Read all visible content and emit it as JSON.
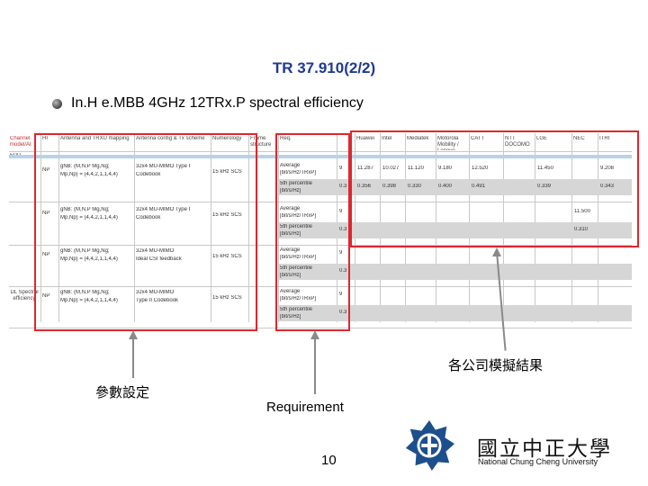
{
  "slide": {
    "title": "TR 37.910(2/2)",
    "bullet": "In.H e.MBB 4GHz 12TRx.P spectral efficiency",
    "page_number": "10"
  },
  "labels": {
    "results": "各公司模擬結果",
    "params": "參數設定",
    "requirement": "Requirement"
  },
  "logo": {
    "chinese": "國立中正大學",
    "english": "National Chung Cheng University"
  },
  "table": {
    "headers": [
      "Channel model/AI",
      "HI",
      "Antenna and TRXU mapping",
      "Antenna config & Tx scheme",
      "Numerology",
      "Frame structure",
      "Req.",
      "",
      "Huawei",
      "Intel",
      "Mediatek",
      "Motorola Mobility / Lenovo",
      "CATT",
      "NTT DOCOMO",
      "LGE",
      "NEC",
      "ITRI"
    ],
    "fdd": "FDD",
    "row_label": "DL Spectral efficiency",
    "groups": [
      {
        "hi": "NP",
        "ant": [
          "gNB: (M,N,P Mg,Ng;",
          "Mp,Np) = (4,4,2,1,1,4,4)"
        ],
        "scheme": [
          "32x4 MU-MIMO Type I",
          "Codebook"
        ],
        "num": "15 kHz SCS",
        "rows": [
          {
            "req": [
              "Average",
              "[bit/s/Hz/TRxP]"
            ],
            "val": "9",
            "results": [
              "11.287",
              "10.027",
              "11.120",
              "9.180",
              "12.520",
              "",
              "11.450",
              "",
              "9.208"
            ]
          },
          {
            "req": [
              "5th percentile",
              "[bit/s/Hz]"
            ],
            "val": "0.3",
            "results": [
              "0.356",
              "0.398",
              "0.330",
              "0.400",
              "0.491",
              "",
              "0.339",
              "",
              "0.343"
            ]
          }
        ]
      },
      {
        "hi": "NP",
        "ant": [
          "gNB: (M,N,P Mg,Ng;",
          "Mp,Np) = (4,4,2,1,1,4,4)"
        ],
        "scheme": [
          "32x4 MU-MIMO Type I",
          "Codebook"
        ],
        "num": "15 kHz SCS",
        "rows": [
          {
            "req": [
              "Average",
              "[bit/s/Hz/TRxP]"
            ],
            "val": "9",
            "results": [
              "",
              "",
              "",
              "",
              "",
              "",
              "",
              "11.500",
              ""
            ]
          },
          {
            "req": [
              "5th percentile",
              "[bit/s/Hz]"
            ],
            "val": "0.3",
            "results": [
              "",
              "",
              "",
              "",
              "",
              "",
              "",
              "0.310",
              ""
            ]
          }
        ]
      },
      {
        "hi": "NP",
        "ant": [
          "gNB: (M,N,P Mg,Ng;",
          "Mp,Np) = (4,4,2,1,1,4,4)"
        ],
        "scheme": [
          "32x4 MU-MIMO",
          "Ideal CSI feedback"
        ],
        "num": "15 kHz SCS",
        "rows": [
          {
            "req": [
              "Average",
              "[bit/s/Hz/TRxP]"
            ],
            "val": "9",
            "results": [
              "",
              "",
              "",
              "",
              "",
              "",
              "",
              "",
              ""
            ]
          },
          {
            "req": [
              "5th percentile",
              "[bit/s/Hz]"
            ],
            "val": "0.3",
            "results": [
              "",
              "",
              "",
              "",
              "",
              "",
              "",
              "",
              ""
            ]
          }
        ]
      },
      {
        "hi": "NP",
        "ant": [
          "gNB: (M,N,P Mg,Ng;",
          "Mp,Np) = (4,4,2,1,1,4,4)"
        ],
        "scheme": [
          "32x4 MU-MIMO",
          "Type II Codebook"
        ],
        "num": "15 kHz SCS",
        "rows": [
          {
            "req": [
              "Average",
              "[bit/s/Hz/TRxP]"
            ],
            "val": "9",
            "results": [
              "",
              "",
              "",
              "",
              "",
              "",
              "",
              "",
              ""
            ]
          },
          {
            "req": [
              "5th percentile",
              "[bit/s/Hz]"
            ],
            "val": "0.3",
            "results": [
              "",
              "",
              "",
              "",
              "",
              "",
              "",
              "",
              ""
            ]
          }
        ]
      }
    ]
  }
}
